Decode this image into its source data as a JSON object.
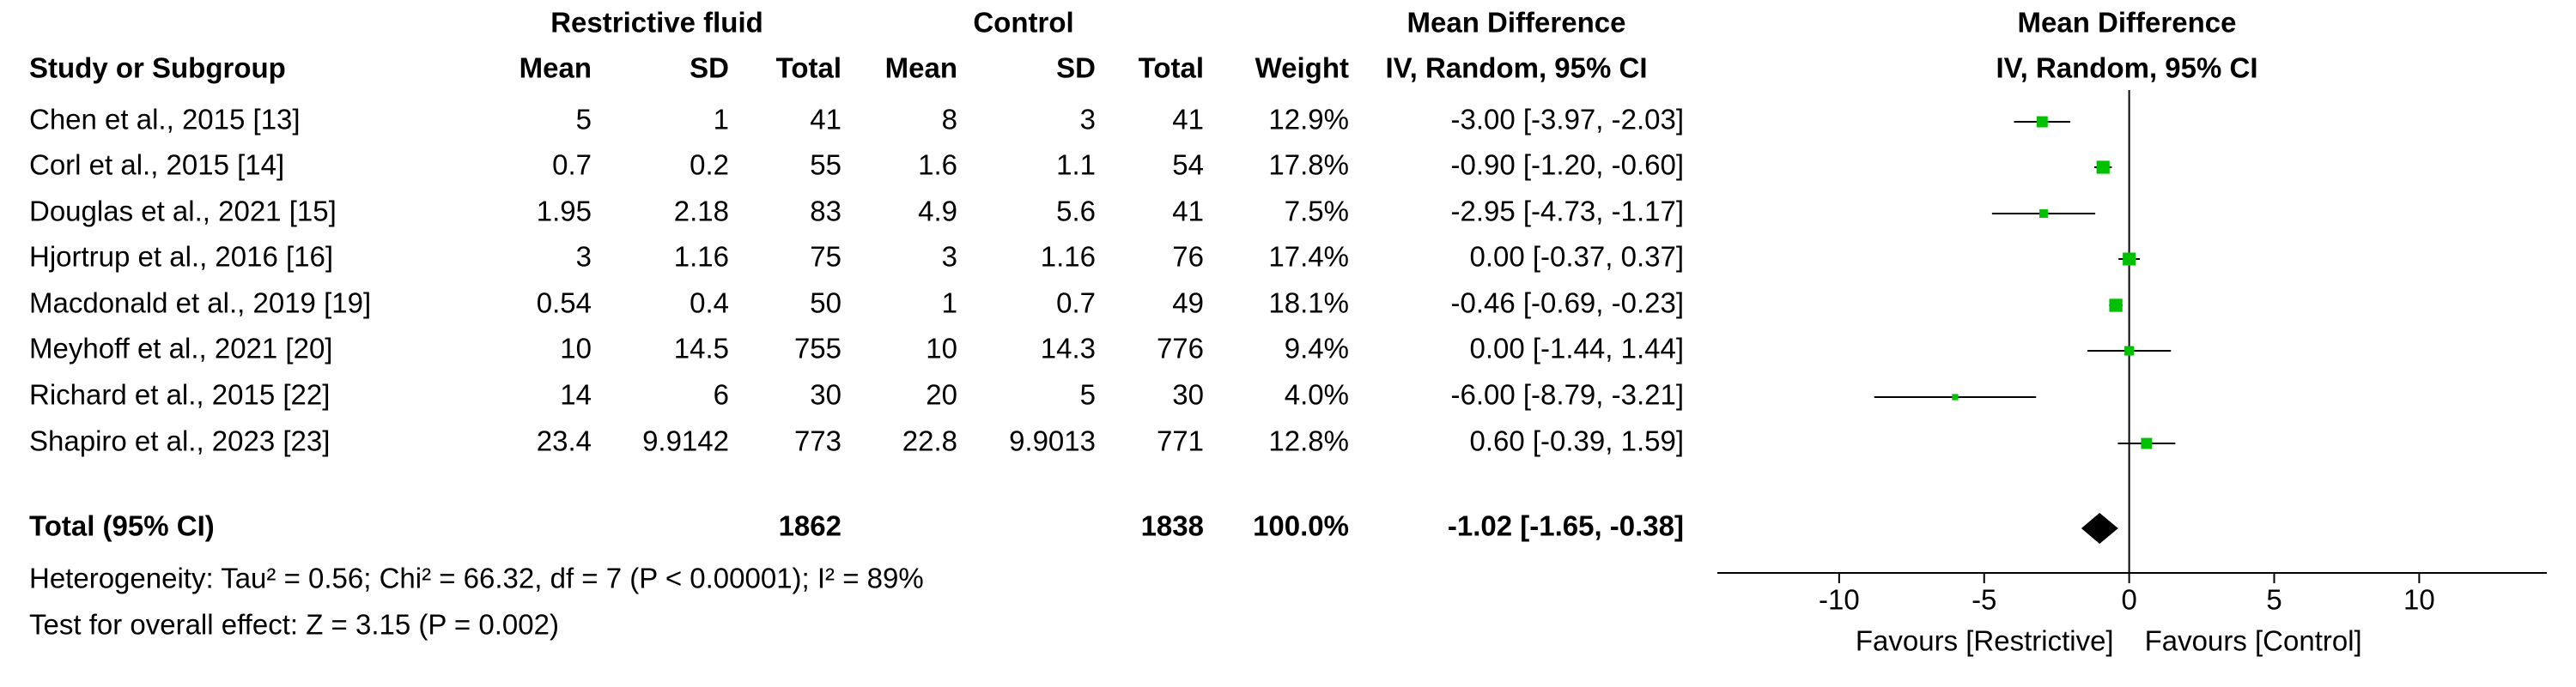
{
  "chart_data": {
    "type": "forest",
    "group_headers": [
      "Restrictive fluid",
      "Control"
    ],
    "effect_header": "Mean Difference",
    "effect_subheader": "IV, Random, 95% CI",
    "plot_header": "Mean Difference",
    "plot_subheader": "IV, Random, 95% CI",
    "columns": [
      "Study or Subgroup",
      "Mean",
      "SD",
      "Total",
      "Mean",
      "SD",
      "Total",
      "Weight"
    ],
    "studies": [
      {
        "name": "Chen et al., 2015 [13]",
        "cells": [
          5,
          1,
          41,
          8,
          3,
          41
        ],
        "weight": 12.9,
        "weight_label": "12.9%",
        "md": -3.0,
        "ci": [
          -3.97,
          -2.03
        ],
        "md_label": "-3.00 [-3.97, -2.03]"
      },
      {
        "name": "Corl et al., 2015 [14]",
        "cells": [
          0.7,
          0.2,
          55,
          1.6,
          1.1,
          54
        ],
        "weight": 17.8,
        "weight_label": "17.8%",
        "md": -0.9,
        "ci": [
          -1.2,
          -0.6
        ],
        "md_label": "-0.90 [-1.20, -0.60]"
      },
      {
        "name": "Douglas et al., 2021 [15]",
        "cells": [
          1.95,
          2.18,
          83,
          4.9,
          5.6,
          41
        ],
        "weight": 7.5,
        "weight_label": "7.5%",
        "md": -2.95,
        "ci": [
          -4.73,
          -1.17
        ],
        "md_label": "-2.95 [-4.73, -1.17]"
      },
      {
        "name": "Hjortrup et al., 2016 [16]",
        "cells": [
          3,
          1.16,
          75,
          3,
          1.16,
          76
        ],
        "weight": 17.4,
        "weight_label": "17.4%",
        "md": 0.0,
        "ci": [
          -0.37,
          0.37
        ],
        "md_label": "0.00 [-0.37, 0.37]"
      },
      {
        "name": "Macdonald et al., 2019 [19]",
        "cells": [
          0.54,
          0.4,
          50,
          1,
          0.7,
          49
        ],
        "weight": 18.1,
        "weight_label": "18.1%",
        "md": -0.46,
        "ci": [
          -0.69,
          -0.23
        ],
        "md_label": "-0.46 [-0.69, -0.23]"
      },
      {
        "name": "Meyhoff et al., 2021 [20]",
        "cells": [
          10,
          14.5,
          755,
          10,
          14.3,
          776
        ],
        "weight": 9.4,
        "weight_label": "9.4%",
        "md": 0.0,
        "ci": [
          -1.44,
          1.44
        ],
        "md_label": "0.00 [-1.44, 1.44]"
      },
      {
        "name": "Richard et al., 2015 [22]",
        "cells": [
          14,
          6,
          30,
          20,
          5,
          30
        ],
        "weight": 4.0,
        "weight_label": "4.0%",
        "md": -6.0,
        "ci": [
          -8.79,
          -3.21
        ],
        "md_label": "-6.00 [-8.79, -3.21]"
      },
      {
        "name": "Shapiro et al., 2023 [23]",
        "cells": [
          23.4,
          9.9142,
          773,
          22.8,
          9.9013,
          771
        ],
        "weight": 12.8,
        "weight_label": "12.8%",
        "md": 0.6,
        "ci": [
          -0.39,
          1.59
        ],
        "md_label": "0.60 [-0.39, 1.59]"
      }
    ],
    "total": {
      "name": "Total (95% CI)",
      "exp_total": 1862,
      "ctrl_total": 1838,
      "weight_label": "100.0%",
      "md": -1.02,
      "ci": [
        -1.65,
        -0.38
      ],
      "md_label": "-1.02 [-1.65, -0.38]"
    },
    "heterogeneity": "Heterogeneity: Tau² = 0.56; Chi² = 66.32, df = 7 (P < 0.00001); I² = 89%",
    "overall_effect": "Test for overall effect: Z = 3.15 (P = 0.002)",
    "xlim": [
      -14.2,
      14.4
    ],
    "xticks": [
      -10,
      -5,
      0,
      5,
      10
    ],
    "favours": [
      "Favours [Restrictive]",
      "Favours [Control]"
    ],
    "color": "#00c000"
  }
}
